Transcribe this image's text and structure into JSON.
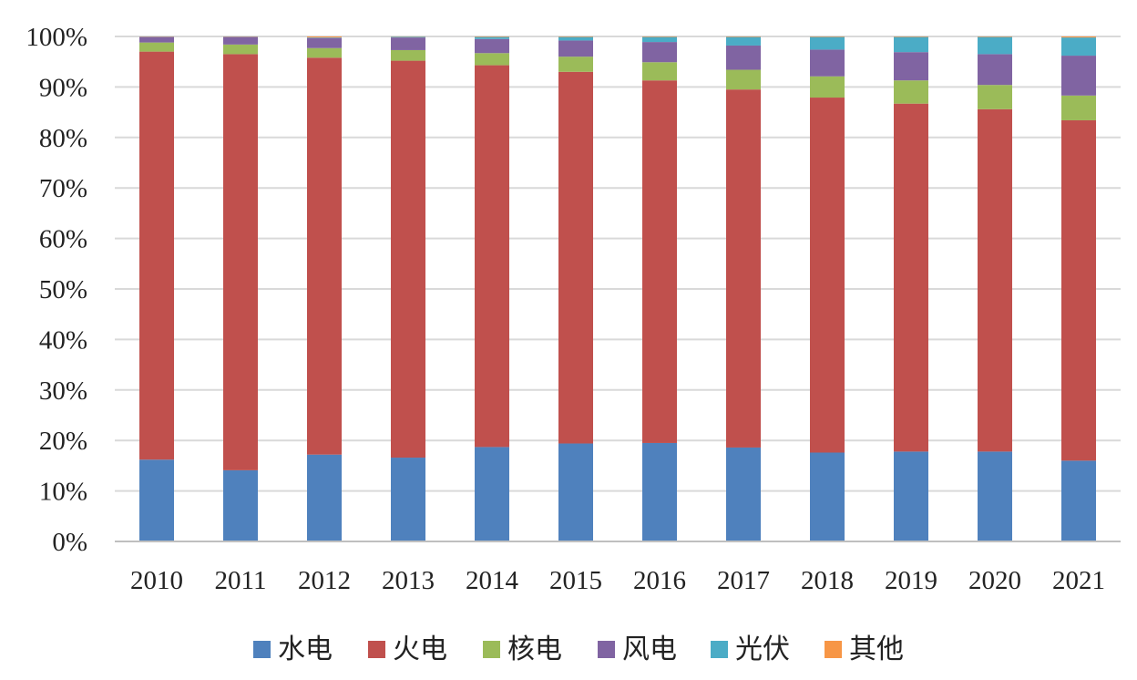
{
  "chart_data": {
    "type": "bar",
    "stacked": true,
    "title": "",
    "xlabel": "",
    "ylabel": "",
    "ylim": [
      0,
      100
    ],
    "y_ticks": [
      "0%",
      "10%",
      "20%",
      "30%",
      "40%",
      "50%",
      "60%",
      "70%",
      "80%",
      "90%",
      "100%"
    ],
    "grid": true,
    "legend_position": "bottom",
    "categories": [
      "2010",
      "2011",
      "2012",
      "2013",
      "2014",
      "2015",
      "2016",
      "2017",
      "2018",
      "2019",
      "2020",
      "2021"
    ],
    "series": [
      {
        "name": "水电",
        "color": "#4f81bd",
        "values": [
          16.2,
          14.1,
          17.2,
          16.6,
          18.7,
          19.4,
          19.5,
          18.6,
          17.6,
          17.8,
          17.8,
          16.0
        ]
      },
      {
        "name": "火电",
        "color": "#c0504d",
        "values": [
          80.8,
          82.4,
          78.6,
          78.6,
          75.6,
          73.6,
          71.8,
          70.9,
          70.3,
          68.9,
          67.8,
          67.4
        ]
      },
      {
        "name": "核电",
        "color": "#9bbb59",
        "values": [
          1.8,
          1.9,
          1.9,
          2.1,
          2.4,
          3.0,
          3.6,
          3.9,
          4.2,
          4.6,
          4.8,
          4.9
        ]
      },
      {
        "name": "风电",
        "color": "#8064a2",
        "values": [
          1.1,
          1.5,
          2.0,
          2.5,
          2.8,
          3.2,
          4.0,
          4.8,
          5.3,
          5.6,
          6.1,
          7.9
        ]
      },
      {
        "name": "光伏",
        "color": "#4bacc6",
        "values": [
          0.05,
          0.05,
          0.1,
          0.15,
          0.4,
          0.7,
          1.0,
          1.7,
          2.5,
          3.0,
          3.4,
          3.6
        ]
      },
      {
        "name": "其他",
        "color": "#f79646",
        "values": [
          0.05,
          0.05,
          0.2,
          0.05,
          0.1,
          0.1,
          0.1,
          0.1,
          0.1,
          0.1,
          0.1,
          0.2
        ]
      }
    ]
  }
}
